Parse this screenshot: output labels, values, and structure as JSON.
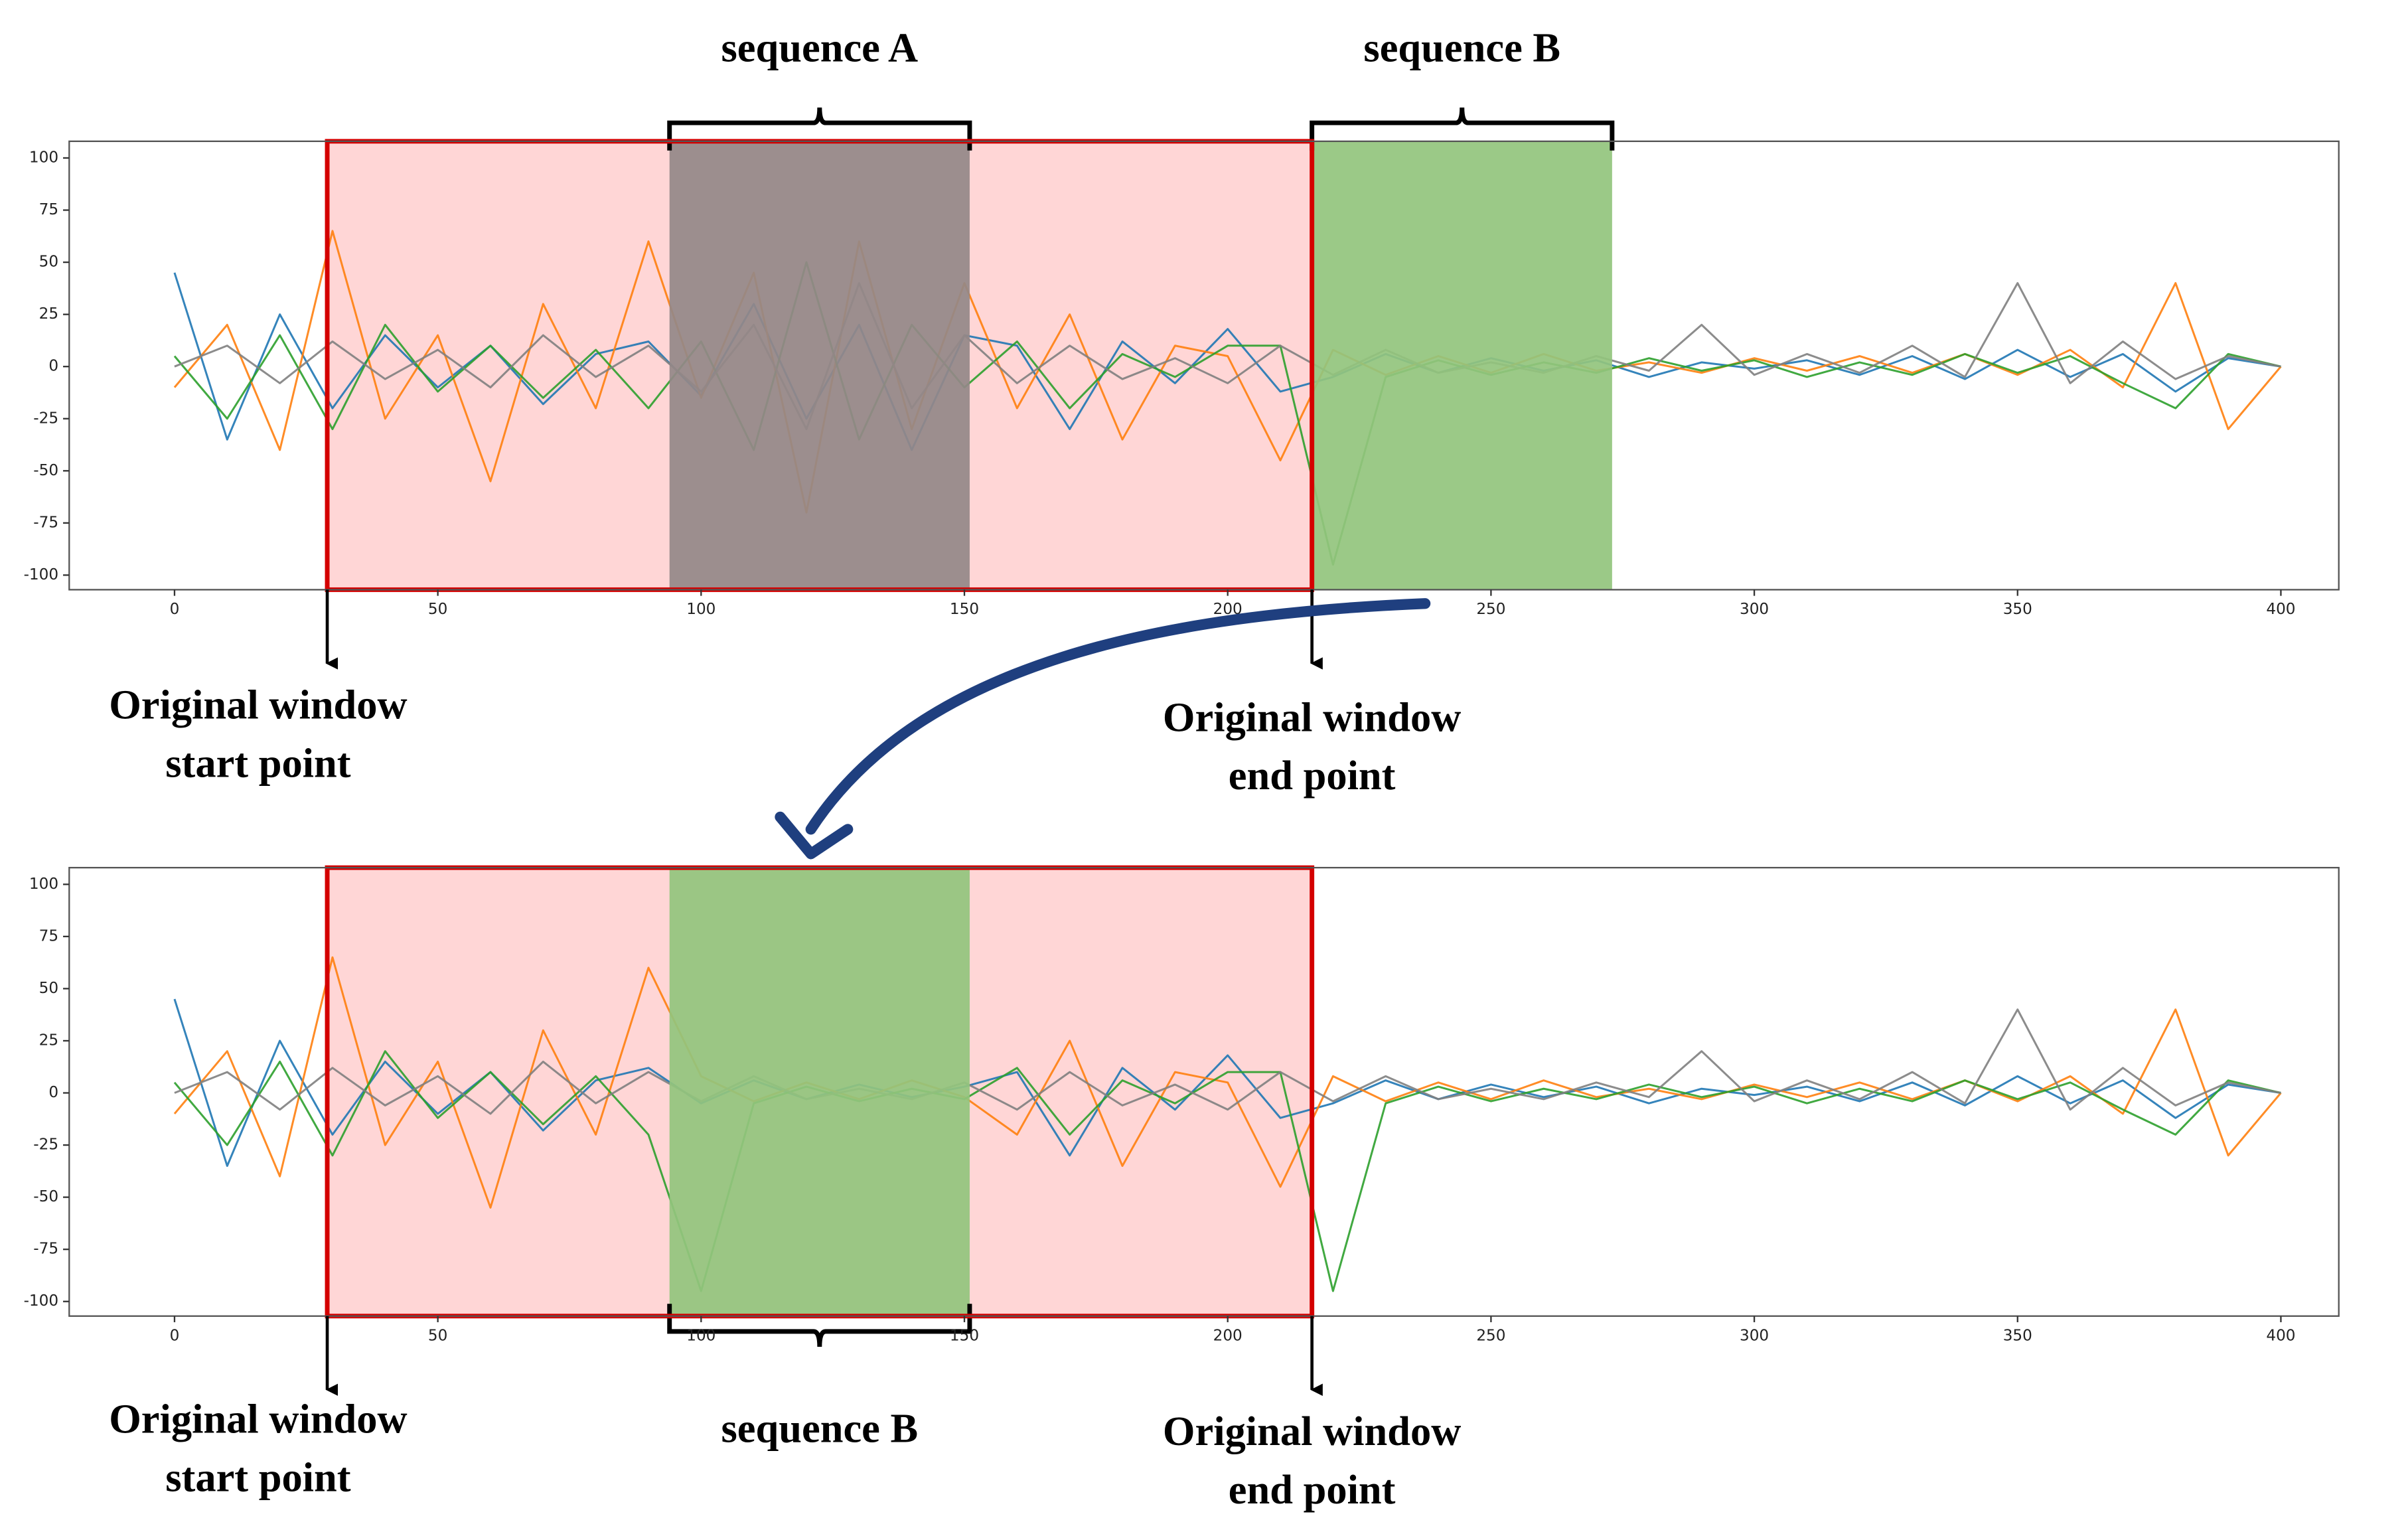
{
  "chart_data": [
    {
      "type": "line",
      "x": [
        0,
        10,
        20,
        30,
        40,
        50,
        60,
        70,
        80,
        90,
        100,
        110,
        120,
        130,
        140,
        150,
        160,
        170,
        180,
        190,
        200,
        210,
        220,
        230,
        240,
        250,
        260,
        270,
        280,
        290,
        300,
        310,
        320,
        330,
        340,
        350,
        360,
        370,
        380,
        390,
        400
      ],
      "series": [
        {
          "color": "#1f77b4",
          "values": [
            45,
            -35,
            25,
            -20,
            15,
            -10,
            10,
            -18,
            6,
            12,
            -14,
            30,
            -25,
            20,
            -40,
            15,
            10,
            -30,
            12,
            -8,
            18,
            -12,
            -5,
            6,
            -3,
            4,
            -2,
            3,
            -5,
            2,
            -1,
            3,
            -4,
            5,
            -6,
            8,
            -5,
            6,
            -12,
            4,
            0
          ]
        },
        {
          "color": "#ff7f0e",
          "values": [
            -10,
            20,
            -40,
            65,
            -25,
            15,
            -55,
            30,
            -20,
            60,
            -15,
            45,
            -70,
            60,
            -30,
            40,
            -20,
            25,
            -35,
            10,
            5,
            -45,
            8,
            -4,
            5,
            -3,
            6,
            -2,
            2,
            -3,
            4,
            -2,
            5,
            -3,
            6,
            -4,
            8,
            -10,
            40,
            -30,
            0
          ]
        },
        {
          "color": "#2ca02c",
          "values": [
            5,
            -25,
            15,
            -30,
            20,
            -12,
            10,
            -15,
            8,
            -20,
            12,
            -40,
            50,
            -35,
            20,
            -10,
            12,
            -20,
            6,
            -5,
            10,
            10,
            -95,
            -5,
            3,
            -4,
            2,
            -3,
            4,
            -2,
            3,
            -5,
            2,
            -4,
            6,
            -3,
            5,
            -8,
            -20,
            6,
            0
          ]
        },
        {
          "color": "#7f7f7f",
          "values": [
            0,
            10,
            -8,
            12,
            -6,
            8,
            -10,
            15,
            -5,
            10,
            -12,
            20,
            -30,
            40,
            -20,
            15,
            -8,
            10,
            -6,
            4,
            -8,
            10,
            -4,
            8,
            -3,
            2,
            -3,
            5,
            -2,
            20,
            -4,
            6,
            -3,
            10,
            -5,
            40,
            -8,
            12,
            -6,
            5,
            0
          ]
        }
      ],
      "xlim": [
        -20,
        411
      ],
      "ylim": [
        -107,
        108
      ],
      "xticks": [
        0,
        50,
        100,
        150,
        200,
        250,
        300,
        350,
        400
      ],
      "yticks": [
        -100,
        -75,
        -50,
        -25,
        0,
        25,
        50,
        75,
        100
      ],
      "window": {
        "range": [
          29,
          216
        ],
        "color": "#d40000",
        "fill": "#ffd6d6"
      },
      "regions": [
        {
          "label": "sequence A",
          "range": [
            94,
            151
          ],
          "color": "#948888",
          "position": "above"
        },
        {
          "label": "sequence B",
          "range": [
            216,
            273
          ],
          "color": "#93c47d",
          "position": "above"
        }
      ],
      "annotations": [
        {
          "lines": [
            "Original window",
            "start point"
          ],
          "x": 29
        },
        {
          "lines": [
            "Original window",
            "end point"
          ],
          "x": 216
        }
      ]
    },
    {
      "type": "line",
      "x": [
        0,
        10,
        20,
        30,
        40,
        50,
        60,
        70,
        80,
        90,
        100,
        110,
        120,
        130,
        140,
        150,
        160,
        170,
        180,
        190,
        200,
        210,
        220,
        230,
        240,
        250,
        260,
        270,
        280,
        290,
        300,
        310,
        320,
        330,
        340,
        350,
        360,
        370,
        380,
        390,
        400
      ],
      "series": [
        {
          "color": "#1f77b4",
          "values": [
            45,
            -35,
            25,
            -20,
            15,
            -10,
            10,
            -18,
            6,
            12,
            -5,
            6,
            -3,
            4,
            -2,
            3,
            10,
            -30,
            12,
            -8,
            18,
            -12,
            -5,
            6,
            -3,
            4,
            -2,
            3,
            -5,
            2,
            -1,
            3,
            -4,
            5,
            -6,
            8,
            -5,
            6,
            -12,
            4,
            0
          ]
        },
        {
          "color": "#ff7f0e",
          "values": [
            -10,
            20,
            -40,
            65,
            -25,
            15,
            -55,
            30,
            -20,
            60,
            8,
            -4,
            5,
            -3,
            6,
            -2,
            -20,
            25,
            -35,
            10,
            5,
            -45,
            8,
            -4,
            5,
            -3,
            6,
            -2,
            2,
            -3,
            4,
            -2,
            5,
            -3,
            6,
            -4,
            8,
            -10,
            40,
            -30,
            0
          ]
        },
        {
          "color": "#2ca02c",
          "values": [
            5,
            -25,
            15,
            -30,
            20,
            -12,
            10,
            -15,
            8,
            -20,
            -95,
            -5,
            3,
            -4,
            2,
            -3,
            12,
            -20,
            6,
            -5,
            10,
            10,
            -95,
            -5,
            3,
            -4,
            2,
            -3,
            4,
            -2,
            3,
            -5,
            2,
            -4,
            6,
            -3,
            5,
            -8,
            -20,
            6,
            0
          ]
        },
        {
          "color": "#7f7f7f",
          "values": [
            0,
            10,
            -8,
            12,
            -6,
            8,
            -10,
            15,
            -5,
            10,
            -4,
            8,
            -3,
            2,
            -3,
            5,
            -8,
            10,
            -6,
            4,
            -8,
            10,
            -4,
            8,
            -3,
            2,
            -3,
            5,
            -2,
            20,
            -4,
            6,
            -3,
            10,
            -5,
            40,
            -8,
            12,
            -6,
            5,
            0
          ]
        }
      ],
      "xlim": [
        -20,
        411
      ],
      "ylim": [
        -107,
        108
      ],
      "xticks": [
        0,
        50,
        100,
        150,
        200,
        250,
        300,
        350,
        400
      ],
      "yticks": [
        -100,
        -75,
        -50,
        -25,
        0,
        25,
        50,
        75,
        100
      ],
      "window": {
        "range": [
          29,
          216
        ],
        "color": "#d40000",
        "fill": "#ffd6d6"
      },
      "regions": [
        {
          "label": "sequence B",
          "range": [
            94,
            151
          ],
          "color": "#93c47d",
          "position": "below"
        }
      ],
      "annotations": [
        {
          "lines": [
            "Original window",
            "start point"
          ],
          "x": 29
        },
        {
          "lines": [
            "Original window",
            "end point"
          ],
          "x": 216
        }
      ]
    }
  ]
}
